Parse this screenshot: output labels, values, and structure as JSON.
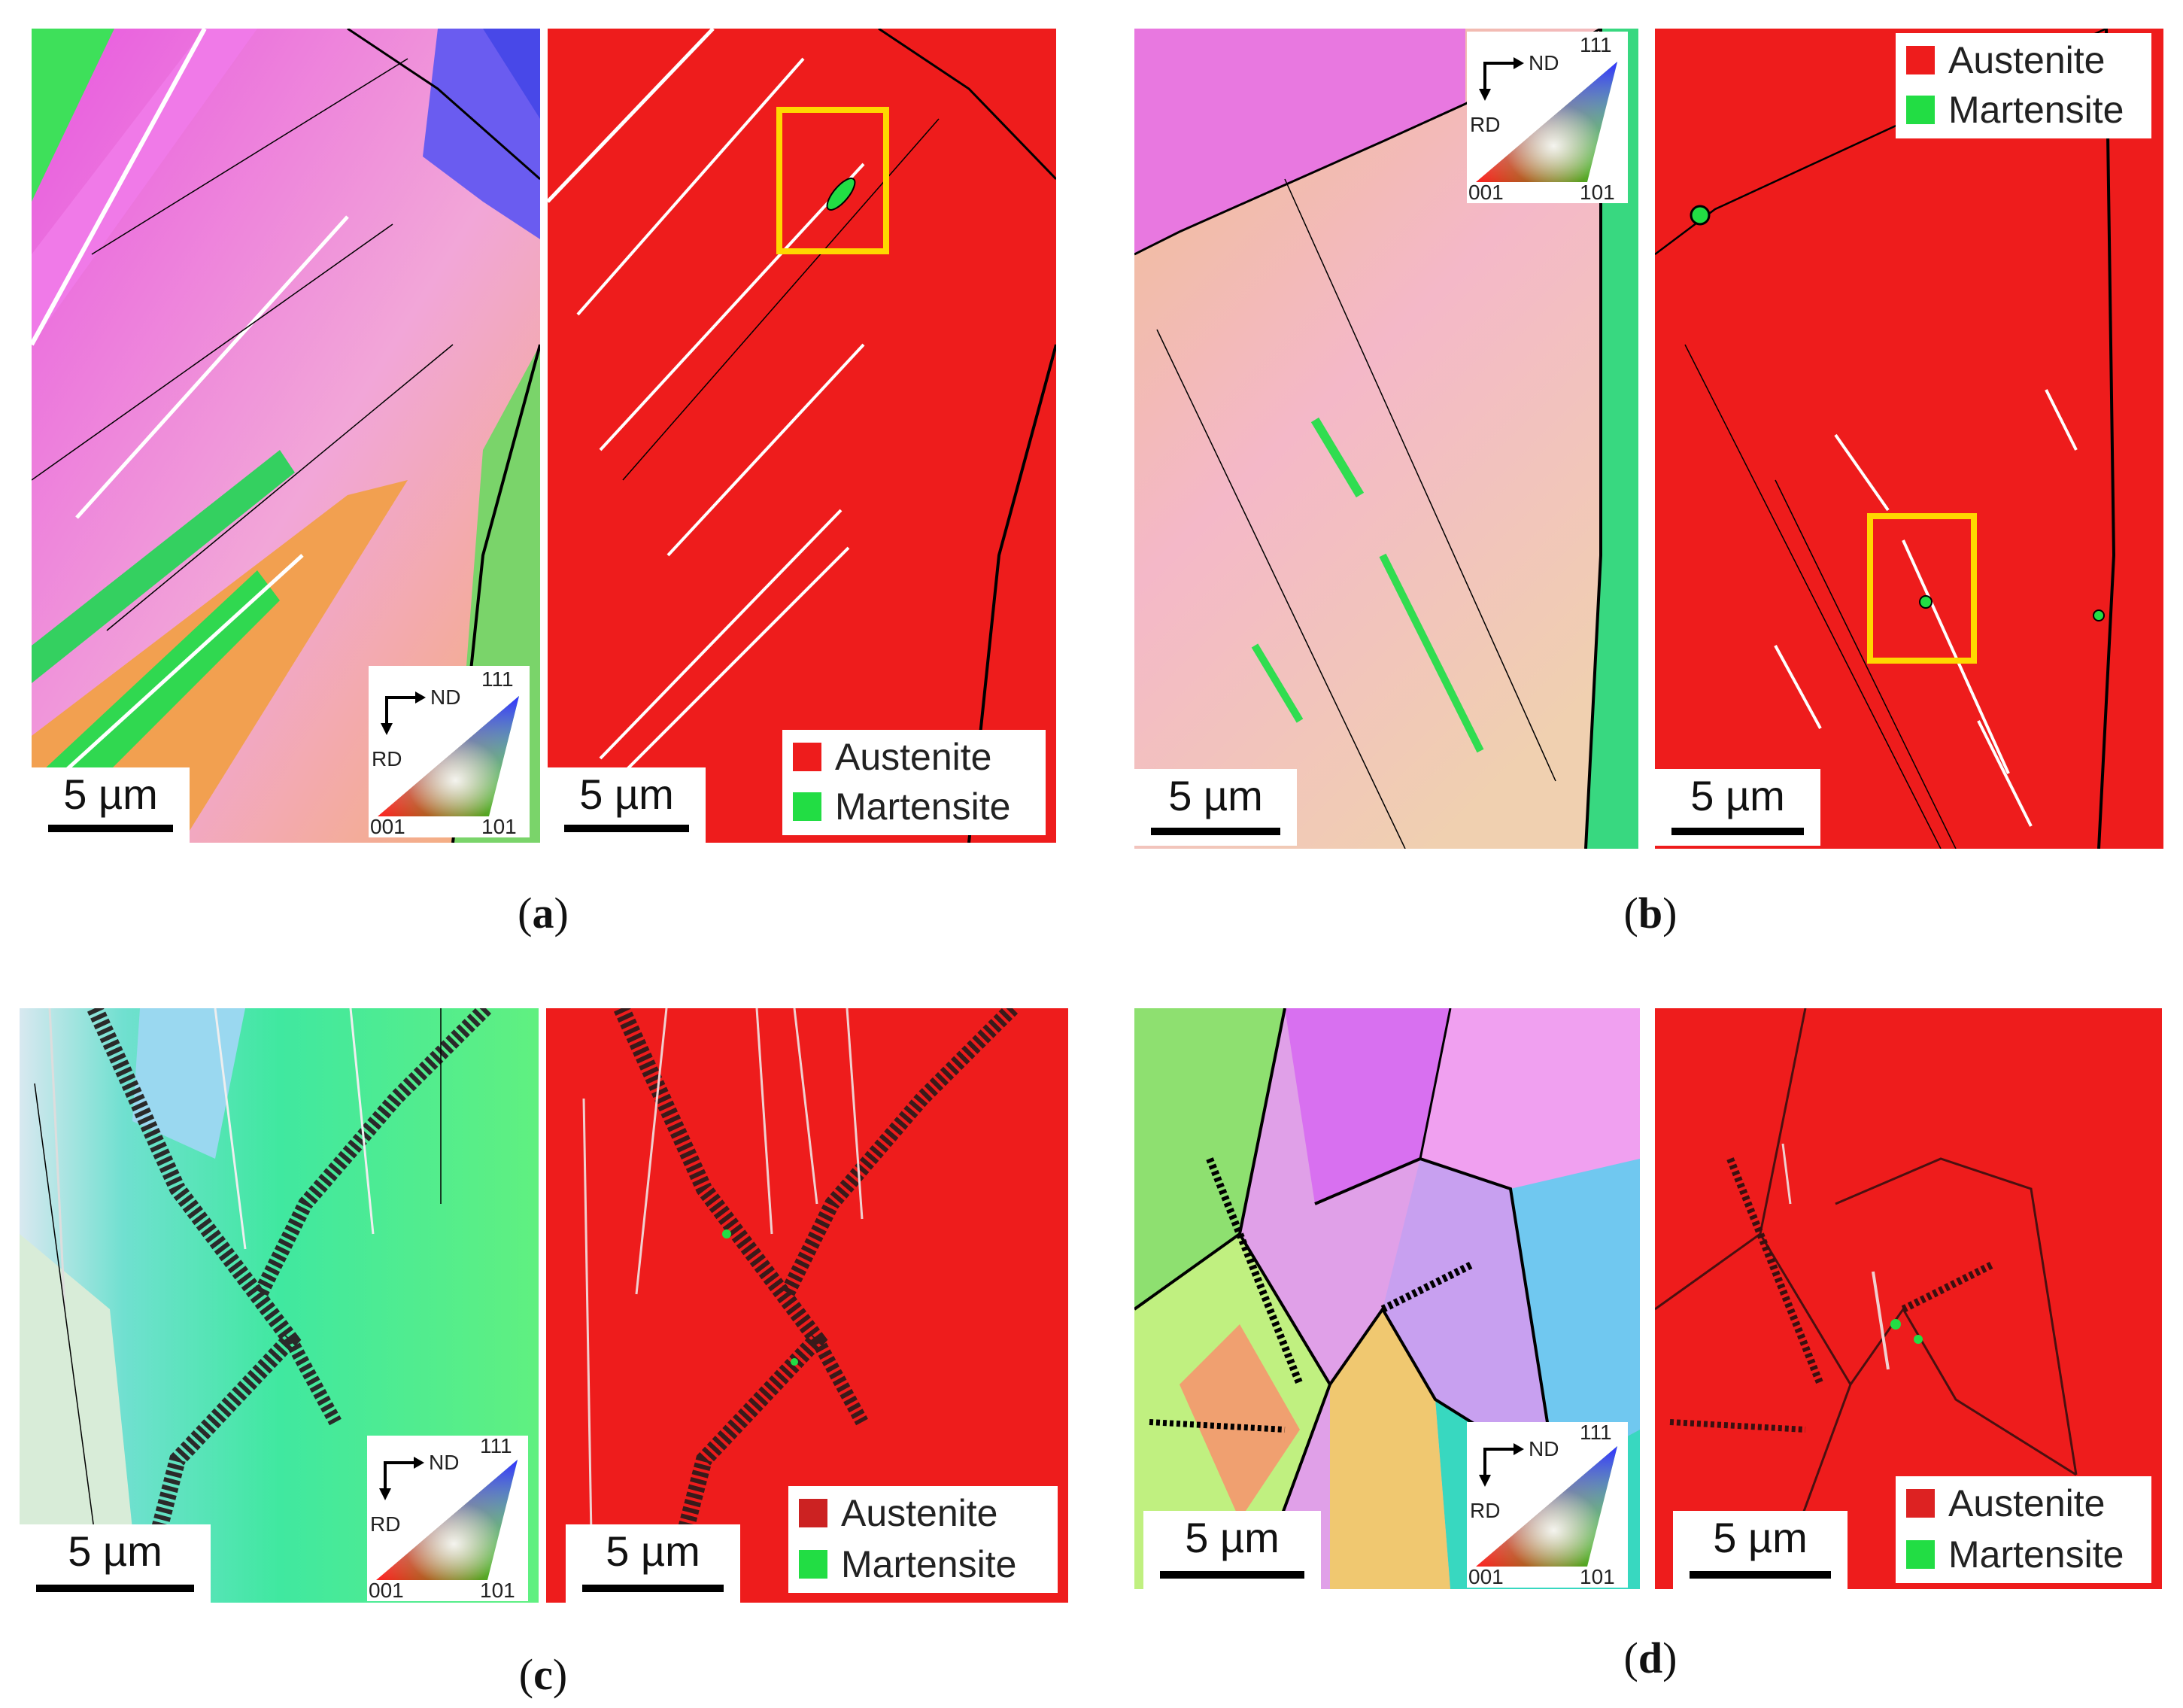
{
  "colors": {
    "austenite": "#EE1C1C",
    "martensite": "#22DD44",
    "highlight_box": "#FFD700",
    "twin_boundary": "#FFFFFF",
    "grain_boundary": "#000000"
  },
  "panels": [
    {
      "caption_letter": "a",
      "ipf_map": {
        "scale_label": "5 µm",
        "key": {
          "nd": "ND",
          "rd": "RD",
          "corner_001": "001",
          "corner_101": "101",
          "corner_111": "111"
        }
      },
      "phase_map": {
        "scale_label": "5 µm",
        "legend": [
          {
            "name": "Austenite"
          },
          {
            "name": "Martensite"
          }
        ],
        "highlight_box": true
      }
    },
    {
      "caption_letter": "b",
      "ipf_map": {
        "scale_label": "5 µm",
        "key": {
          "nd": "ND",
          "rd": "RD",
          "corner_001": "001",
          "corner_101": "101",
          "corner_111": "111"
        }
      },
      "phase_map": {
        "scale_label": "5 µm",
        "legend": [
          {
            "name": "Austenite"
          },
          {
            "name": "Martensite"
          }
        ],
        "highlight_box": true
      }
    },
    {
      "caption_letter": "c",
      "ipf_map": {
        "scale_label": "5 µm",
        "key": {
          "nd": "ND",
          "rd": "RD",
          "corner_001": "001",
          "corner_101": "101",
          "corner_111": "111"
        }
      },
      "phase_map": {
        "scale_label": "5 µm",
        "legend": [
          {
            "name": "Austenite"
          },
          {
            "name": "Martensite"
          }
        ],
        "highlight_box": false
      }
    },
    {
      "caption_letter": "d",
      "ipf_map": {
        "scale_label": "5 µm",
        "key": {
          "nd": "ND",
          "rd": "RD",
          "corner_001": "001",
          "corner_101": "101",
          "corner_111": "111"
        }
      },
      "phase_map": {
        "scale_label": "5 µm",
        "legend": [
          {
            "name": "Austenite"
          },
          {
            "name": "Martensite"
          }
        ],
        "highlight_box": false
      }
    }
  ]
}
